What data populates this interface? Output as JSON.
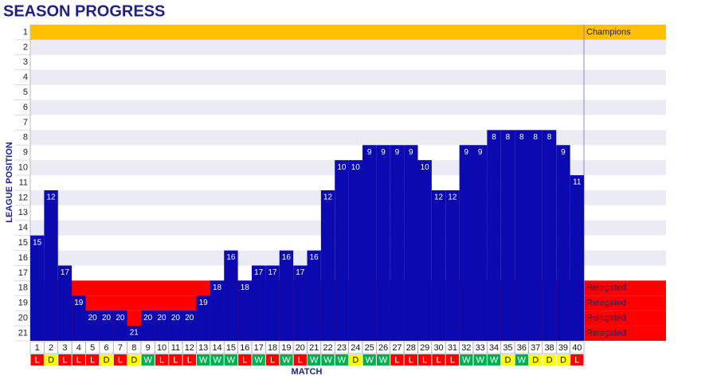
{
  "chart_data": {
    "type": "bar",
    "title": "SEASON PROGRESS",
    "x_label": "MATCH",
    "y_label": "LEAGUE POSITION",
    "categories": [
      "1",
      "2",
      "3",
      "4",
      "5",
      "6",
      "7",
      "8",
      "9",
      "10",
      "11",
      "12",
      "13",
      "14",
      "15",
      "16",
      "17",
      "18",
      "19",
      "20",
      "21",
      "22",
      "23",
      "24",
      "25",
      "26",
      "27",
      "28",
      "29",
      "30",
      "31",
      "32",
      "33",
      "34",
      "35",
      "36",
      "37",
      "38",
      "39",
      "40"
    ],
    "values": [
      15,
      12,
      17,
      19,
      20,
      20,
      20,
      21,
      20,
      20,
      20,
      20,
      19,
      18,
      16,
      18,
      17,
      17,
      16,
      17,
      16,
      12,
      10,
      10,
      9,
      9,
      9,
      9,
      10,
      12,
      12,
      9,
      9,
      8,
      8,
      8,
      8,
      8,
      9,
      11
    ],
    "results": [
      "L",
      "D",
      "L",
      "L",
      "L",
      "D",
      "L",
      "D",
      "W",
      "L",
      "L",
      "L",
      "W",
      "W",
      "W",
      "L",
      "W",
      "L",
      "W",
      "L",
      "W",
      "W",
      "W",
      "D",
      "W",
      "W",
      "L",
      "L",
      "L",
      "L",
      "L",
      "W",
      "W",
      "W",
      "D",
      "W",
      "D",
      "D",
      "D",
      "L"
    ],
    "result_colors": {
      "W": "#00b050",
      "D": "#ffff00",
      "L": "#ff0000"
    },
    "color": "#0a0ab0",
    "ylim": [
      21.5,
      0.5
    ],
    "yticks": [
      1,
      2,
      3,
      4,
      5,
      6,
      7,
      8,
      9,
      10,
      11,
      12,
      13,
      14,
      15,
      16,
      17,
      18,
      19,
      20,
      21
    ],
    "zones": [
      {
        "position": 1,
        "label": "Champions",
        "color": "#ffc000"
      },
      {
        "position": 18,
        "label": "Relegated",
        "color": "#ff0000"
      },
      {
        "position": 19,
        "label": "Relegated",
        "color": "#ff0000"
      },
      {
        "position": 20,
        "label": "Relegated",
        "color": "#ff0000"
      },
      {
        "position": 21,
        "label": "Relegated",
        "color": "#ff0000"
      }
    ]
  }
}
